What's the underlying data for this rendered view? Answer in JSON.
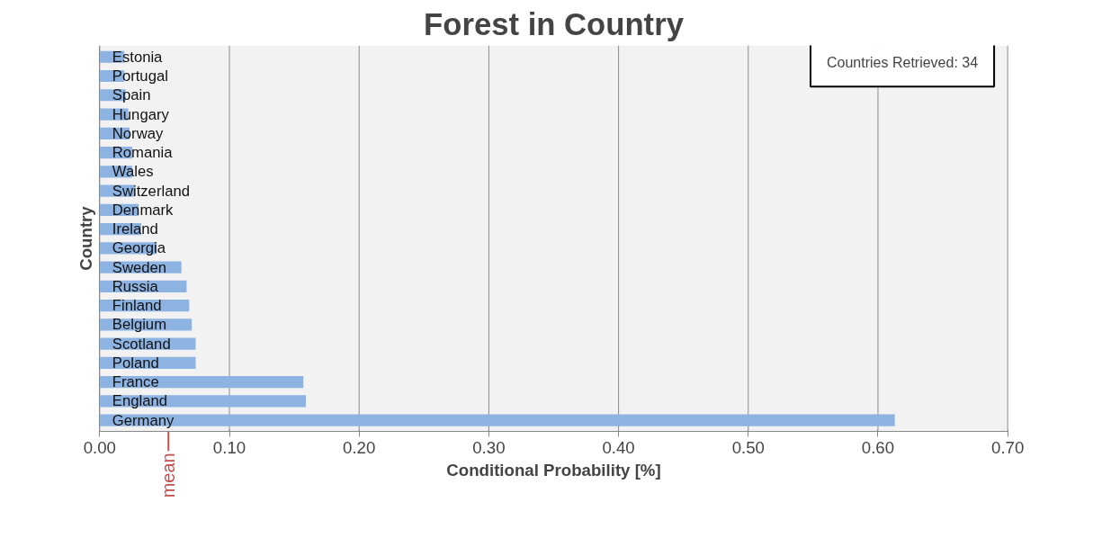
{
  "chart_data": {
    "type": "bar",
    "orientation": "horizontal",
    "title": "Forest in Country",
    "xlabel": "Conditional Probability [%]",
    "ylabel": "Country",
    "categories": [
      "Estonia",
      "Portugal",
      "Spain",
      "Hungary",
      "Norway",
      "Romania",
      "Wales",
      "Switzerland",
      "Denmark",
      "Ireland",
      "Georgia",
      "Sweden",
      "Russia",
      "Finland",
      "Belgium",
      "Scotland",
      "Poland",
      "France",
      "England",
      "Germany"
    ],
    "values": [
      0.019,
      0.019,
      0.02,
      0.022,
      0.023,
      0.025,
      0.025,
      0.027,
      0.03,
      0.032,
      0.044,
      0.063,
      0.067,
      0.069,
      0.071,
      0.074,
      0.074,
      0.157,
      0.159,
      0.613
    ],
    "color": "#8db3e2",
    "xlim": [
      0,
      0.7
    ],
    "xticks": [
      {
        "value": 0,
        "label": "0.00"
      },
      {
        "value": 0.1,
        "label": "0.10"
      },
      {
        "value": 0.2,
        "label": "0.20"
      },
      {
        "value": 0.3,
        "label": "0.30"
      },
      {
        "value": 0.4,
        "label": "0.40"
      },
      {
        "value": 0.5,
        "label": "0.50"
      },
      {
        "value": 0.6,
        "label": "0.60"
      },
      {
        "value": 0.7,
        "label": "0.70"
      }
    ],
    "grid": "x",
    "tick_labels": "x",
    "ref_lines": [
      {
        "axis": "x",
        "value": 0.053,
        "label": "mean",
        "color": "#c0504d"
      }
    ],
    "annotations": [
      "Countries Retrieved: 34"
    ]
  }
}
